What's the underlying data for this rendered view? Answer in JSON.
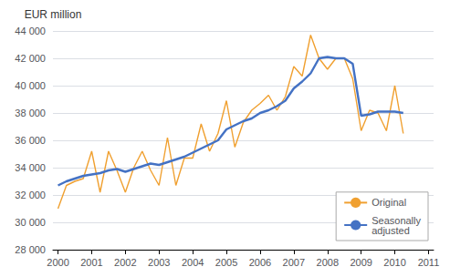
{
  "chart_data": {
    "type": "line",
    "y_label": "EUR million",
    "x": [
      2000,
      2000.25,
      2000.5,
      2000.75,
      2001,
      2001.25,
      2001.5,
      2001.75,
      2002,
      2002.25,
      2002.5,
      2002.75,
      2003,
      2003.25,
      2003.5,
      2003.75,
      2004,
      2004.25,
      2004.5,
      2004.75,
      2005,
      2005.25,
      2005.5,
      2005.75,
      2006,
      2006.25,
      2006.5,
      2006.75,
      2007,
      2007.25,
      2007.5,
      2007.75,
      2008,
      2008.25,
      2008.5,
      2008.75,
      2009,
      2009.25,
      2009.5,
      2009.75,
      2010,
      2010.25
    ],
    "series": [
      {
        "name": "Original",
        "color": "#f0a030",
        "values": [
          31000,
          32700,
          33000,
          33200,
          35200,
          32200,
          35200,
          33800,
          32200,
          34000,
          35200,
          33800,
          32700,
          36200,
          32700,
          34700,
          34700,
          37200,
          35200,
          36500,
          38900,
          35500,
          37300,
          38200,
          38700,
          39300,
          38200,
          39200,
          41400,
          40700,
          43700,
          42000,
          41200,
          42000,
          42000,
          40500,
          36700,
          38200,
          38000,
          36700,
          40000,
          36500
        ]
      },
      {
        "name": "Seasonally\nadjusted",
        "color": "#4472c4",
        "values": [
          32700,
          33000,
          33200,
          33400,
          33500,
          33600,
          33800,
          33900,
          33700,
          33900,
          34100,
          34300,
          34200,
          34400,
          34600,
          34800,
          35100,
          35400,
          35700,
          36000,
          36800,
          37100,
          37400,
          37600,
          38000,
          38200,
          38500,
          38900,
          39800,
          40300,
          40900,
          42000,
          42100,
          42000,
          42000,
          41600,
          37800,
          37900,
          38100,
          38100,
          38100,
          38000
        ]
      }
    ],
    "xlim": [
      1999.85,
      2011.15
    ],
    "xticks": [
      2000,
      2001,
      2002,
      2003,
      2004,
      2005,
      2006,
      2007,
      2008,
      2009,
      2010,
      2011
    ],
    "ylim": [
      28000,
      44000
    ],
    "yticks": [
      {
        "value": 28000,
        "label": "28 000"
      },
      {
        "value": 30000,
        "label": "30 000"
      },
      {
        "value": 32000,
        "label": "32 000"
      },
      {
        "value": 34000,
        "label": "34 000"
      },
      {
        "value": 36000,
        "label": "36 000"
      },
      {
        "value": 38000,
        "label": "38 000"
      },
      {
        "value": 40000,
        "label": "40 000"
      },
      {
        "value": 42000,
        "label": "42 000"
      },
      {
        "value": 44000,
        "label": "44 000"
      }
    ],
    "grid": true,
    "legend": "lower right"
  }
}
